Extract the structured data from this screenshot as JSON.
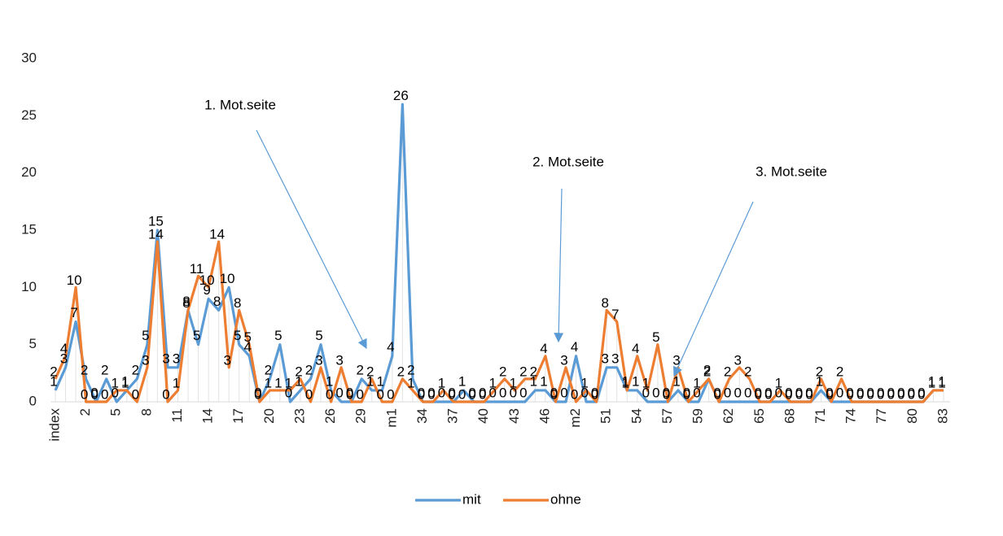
{
  "chart_data": {
    "type": "line",
    "categories": [
      "index",
      null,
      null,
      "2",
      null,
      null,
      "5",
      null,
      null,
      "8",
      null,
      null,
      "11",
      null,
      null,
      "14",
      null,
      null,
      "17",
      null,
      null,
      "20",
      null,
      null,
      "23",
      null,
      null,
      "26",
      null,
      null,
      "29",
      null,
      null,
      "m1",
      null,
      null,
      "34",
      null,
      null,
      "37",
      null,
      null,
      "40",
      null,
      null,
      "43",
      null,
      null,
      "46",
      null,
      null,
      "m2",
      null,
      null,
      "51",
      null,
      null,
      "54",
      null,
      null,
      "57",
      null,
      null,
      "59",
      null,
      null,
      "62",
      null,
      null,
      "65",
      null,
      null,
      "68",
      null,
      null,
      "71",
      null,
      null,
      "74",
      null,
      null,
      "77",
      null,
      null,
      "80",
      null,
      null,
      "83"
    ],
    "series": [
      {
        "name": "mit",
        "color": "#5b9bd5",
        "values": [
          1,
          3,
          7,
          2,
          0,
          2,
          0,
          1,
          2,
          5,
          15,
          3,
          3,
          8,
          5,
          9,
          8,
          10,
          5,
          4,
          0,
          2,
          5,
          0,
          1,
          2,
          5,
          1,
          0,
          0,
          2,
          1,
          1,
          4,
          26,
          2,
          0,
          0,
          0,
          0,
          1,
          0,
          0,
          0,
          0,
          0,
          0,
          1,
          1,
          0,
          0,
          4,
          0,
          0,
          3,
          3,
          1,
          1,
          0,
          0,
          0,
          1,
          0,
          0,
          2,
          0,
          0,
          0,
          0,
          0,
          0,
          0,
          0,
          0,
          0,
          1,
          0,
          0,
          0,
          0,
          0,
          0,
          0,
          0,
          0,
          0,
          1,
          1
        ]
      },
      {
        "name": "ohne",
        "color": "#ed7d31",
        "values": [
          2,
          4,
          10,
          0,
          0,
          0,
          1,
          1,
          0,
          3,
          14,
          0,
          1,
          8,
          11,
          10,
          14,
          3,
          8,
          5,
          0,
          1,
          1,
          1,
          2,
          0,
          3,
          0,
          3,
          0,
          0,
          2,
          0,
          0,
          2,
          1,
          0,
          0,
          1,
          0,
          0,
          0,
          0,
          1,
          2,
          1,
          2,
          2,
          4,
          0,
          3,
          0,
          1,
          0,
          8,
          7,
          1,
          4,
          1,
          5,
          0,
          3,
          0,
          1,
          2,
          0,
          2,
          3,
          2,
          0,
          0,
          1,
          0,
          0,
          0,
          2,
          0,
          2,
          0,
          0,
          0,
          0,
          0,
          0,
          0,
          0,
          1,
          1
        ]
      }
    ],
    "ylim": [
      0,
      30
    ],
    "yticks": [
      0,
      5,
      10,
      15,
      20,
      25,
      30
    ],
    "annotations": [
      "1. Mot.seite",
      "2. Mot.seite",
      "3. Mot.seite"
    ],
    "legend": "bottom"
  }
}
